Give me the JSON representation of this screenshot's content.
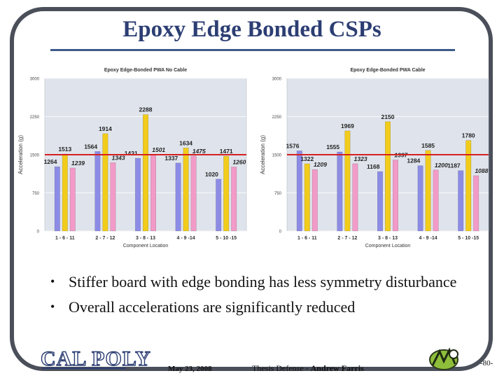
{
  "slide": {
    "title": "Epoxy Edge Bonded CSPs",
    "bullets": [
      "Stiffer board with edge bonding has less symmetry disturbance",
      "Overall accelerations are significantly reduced"
    ],
    "footer": {
      "logo_text": "CAL POLY",
      "date": "May 23, 2008",
      "presentation": "Thesis Defense - ",
      "author": "Andrew Farris",
      "page": "-80-"
    }
  },
  "colors": {
    "series": [
      "#8c8ce6",
      "#f2cc1a",
      "#f29ac8"
    ],
    "reference_line": "#d62020",
    "plot_background": "#dfe4ec",
    "frame": "#4a4f5a",
    "title": "#2c3e73"
  },
  "chart_data": [
    {
      "type": "bar",
      "title": "Epoxy Edge-Bonded PWA No Cable",
      "xlabel": "Component Location",
      "ylabel": "Acceleration (g)",
      "ylim": [
        0,
        3000
      ],
      "yticks": [
        "0",
        "750",
        "1500",
        "2250",
        "3000"
      ],
      "reference_line": 1500,
      "grid": true,
      "categories": [
        "1 - 6 - 11",
        "2 - 7 - 12",
        "3 - 8 - 13",
        "4 - 9 -14",
        "5 - 10 -15"
      ],
      "series": [
        {
          "values": [
            1264,
            1564,
            1431,
            1337,
            1020
          ]
        },
        {
          "values": [
            1513,
            1914,
            2288,
            1634,
            1471
          ]
        },
        {
          "values": [
            1239,
            1343,
            1501,
            1475,
            1260
          ]
        }
      ],
      "value_labels": [
        [
          "1264",
          "1564",
          "1431",
          "1337",
          "1020"
        ],
        [
          "1513",
          "1914",
          "2288",
          "1634",
          "1471"
        ],
        [
          "1239",
          "1343",
          "1501",
          "1475",
          "1260"
        ]
      ]
    },
    {
      "type": "bar",
      "title": "Epoxy Edge-Bonded PWA Cable",
      "xlabel": "Component Location",
      "ylabel": "Acceleration (g)",
      "ylim": [
        0,
        3000
      ],
      "yticks": [
        "0",
        "750",
        "1500",
        "2250",
        "3000"
      ],
      "reference_line": 1500,
      "grid": true,
      "categories": [
        "1 - 6 - 11",
        "2 - 7 - 12",
        "3 - 8 - 13",
        "4 - 9 -14",
        "5 - 10 -15"
      ],
      "series": [
        {
          "values": [
            1576,
            1555,
            1168,
            1284,
            1187
          ]
        },
        {
          "values": [
            1322,
            1969,
            2150,
            1585,
            1780
          ]
        },
        {
          "values": [
            1209,
            1323,
            1397,
            1200,
            1088
          ]
        }
      ],
      "value_labels": [
        [
          "1576",
          "1555",
          "1168",
          "1284",
          "1187"
        ],
        [
          "1322",
          "1969",
          "2150",
          "1585",
          "1780"
        ],
        [
          "1209",
          "1323",
          "1397",
          "1200",
          "1088"
        ]
      ]
    }
  ]
}
